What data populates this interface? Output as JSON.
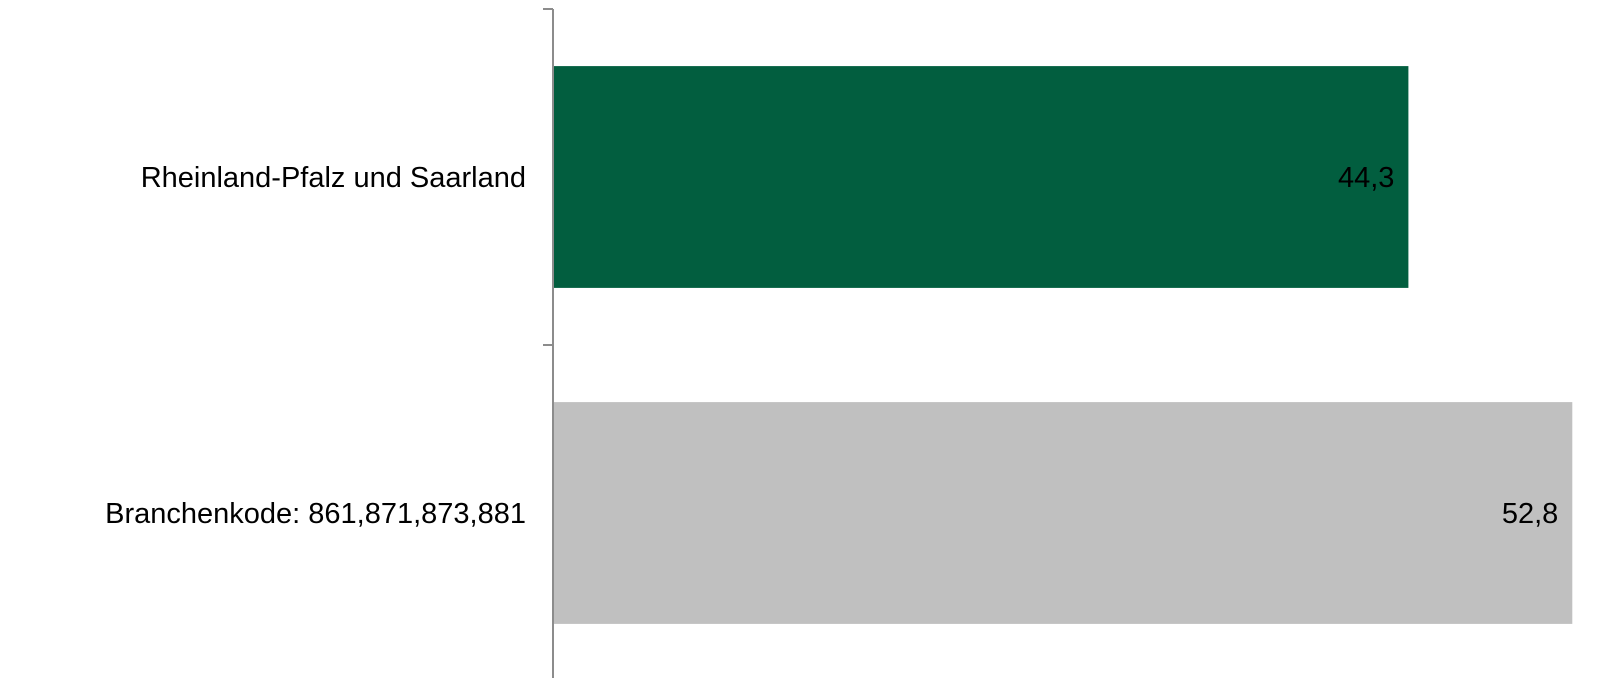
{
  "chart_data": {
    "type": "bar",
    "orientation": "horizontal",
    "title": "",
    "xlabel": "",
    "ylabel": "",
    "grid": false,
    "categories": [
      "Rheinland-Pfalz und Saarland",
      "Branchenkode: 861,871,873,881"
    ],
    "values": [
      44.3,
      52.8
    ],
    "value_labels": [
      "44,3",
      "52,8"
    ],
    "colors": [
      "#025e3f",
      "#c0c0c0"
    ],
    "xlim": [
      0,
      54.6
    ]
  }
}
